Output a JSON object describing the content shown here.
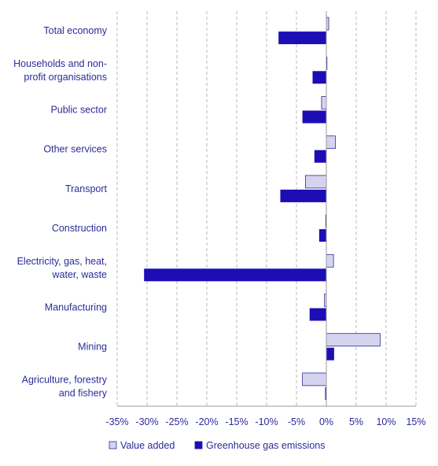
{
  "chart_data": {
    "type": "bar",
    "orientation": "horizontal",
    "categories": [
      [
        "Total economy"
      ],
      [
        "Households and non-",
        "profit organisations"
      ],
      [
        "Public sector"
      ],
      [
        "Other services"
      ],
      [
        "Transport"
      ],
      [
        "Construction"
      ],
      [
        "Electricity, gas, heat,",
        "water, waste"
      ],
      [
        "Manufacturing"
      ],
      [
        "Mining"
      ],
      [
        "Agriculture, forestry",
        "and fishery"
      ]
    ],
    "series": [
      {
        "name": "Value added",
        "color": "#d6d3f0",
        "stroke": "#2b2b9a",
        "values": [
          0.4,
          0.1,
          -0.8,
          1.5,
          -3.5,
          -0.1,
          1.2,
          -0.3,
          9.0,
          -4.0
        ]
      },
      {
        "name": "Greenhouse gas emissions",
        "color": "#1d0db5",
        "stroke": "#1d0db5",
        "values": [
          -8.0,
          -2.3,
          -4.0,
          -2.0,
          -7.7,
          -1.2,
          -30.5,
          -2.8,
          1.3,
          -0.2
        ]
      }
    ],
    "xlim": [
      -35,
      15
    ],
    "xticks": [
      -35,
      -30,
      -25,
      -20,
      -15,
      -10,
      -5,
      0,
      5,
      10,
      15
    ],
    "tick_suffix": "%",
    "grid": true,
    "legend": "bottom",
    "title": "",
    "xlabel": "",
    "ylabel": ""
  }
}
